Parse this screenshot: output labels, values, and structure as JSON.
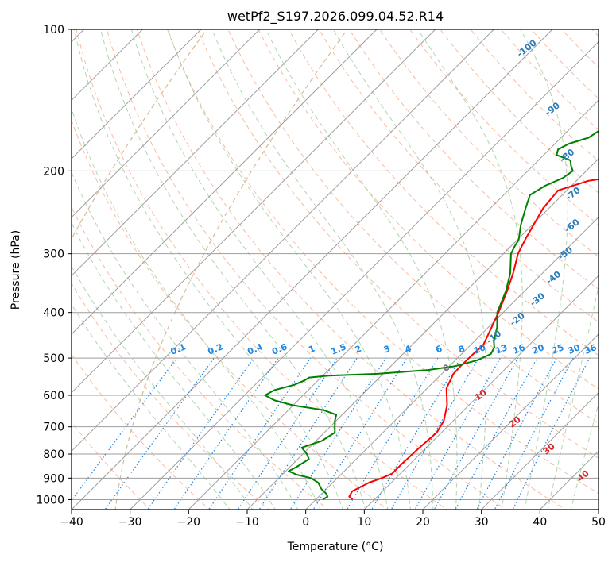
{
  "chart_data": {
    "type": "line",
    "title": "wetPf2_S197.2026.099.04.52.R14",
    "xlabel": "Temperature (°C)",
    "ylabel": "Pressure (hPa)",
    "xlim": [
      -40,
      50
    ],
    "ylim": [
      1050,
      100
    ],
    "y_scale": "log",
    "x_ticks": [
      "−40",
      "−30",
      "−20",
      "−10",
      "0",
      "10",
      "20",
      "30",
      "40",
      "50"
    ],
    "y_ticks": [
      "100",
      "200",
      "300",
      "400",
      "500",
      "600",
      "700",
      "800",
      "900",
      "1000"
    ],
    "y_tick_values": [
      100,
      200,
      300,
      400,
      500,
      600,
      700,
      800,
      900,
      1000
    ],
    "colors": {
      "temperature": "#ff0000",
      "dewpoint": "#008000",
      "isotherm": "#9e9e9e",
      "dry_adiabat": "#f4a582",
      "moist_adiabat": "#9ccc9c",
      "mixing_ratio": "#1e88e5",
      "lcl_isotherm": "#d2b48c",
      "label_dry": "#2c7bb6",
      "label_mixing": "#1e88e5",
      "label_red": "#d62728",
      "label_zero": "#777777"
    },
    "series": [
      {
        "name": "temperature",
        "points": [
          {
            "p": 1000,
            "t": 6.3
          },
          {
            "p": 985,
            "t": 5.2
          },
          {
            "p": 960,
            "t": 4.8
          },
          {
            "p": 940,
            "t": 5.5
          },
          {
            "p": 920,
            "t": 6.2
          },
          {
            "p": 900,
            "t": 7.6
          },
          {
            "p": 880,
            "t": 8.6
          },
          {
            "p": 840,
            "t": 8.6
          },
          {
            "p": 780,
            "t": 8.8
          },
          {
            "p": 720,
            "t": 9.2
          },
          {
            "p": 680,
            "t": 8.4
          },
          {
            "p": 630,
            "t": 6.3
          },
          {
            "p": 580,
            "t": 3.3
          },
          {
            "p": 540,
            "t": 2.0
          },
          {
            "p": 520,
            "t": 1.9
          },
          {
            "p": 490,
            "t": 2.0
          },
          {
            "p": 470,
            "t": 2.2
          },
          {
            "p": 440,
            "t": 1.0
          },
          {
            "p": 400,
            "t": -0.8
          },
          {
            "p": 360,
            "t": -3.0
          },
          {
            "p": 330,
            "t": -5.0
          },
          {
            "p": 300,
            "t": -7.5
          },
          {
            "p": 280,
            "t": -8.7
          },
          {
            "p": 260,
            "t": -9.8
          },
          {
            "p": 240,
            "t": -11.0
          },
          {
            "p": 220,
            "t": -11.5
          },
          {
            "p": 210,
            "t": -8.0
          },
          {
            "p": 200,
            "t": 1.2
          },
          {
            "p": 195,
            "t": 4.8
          },
          {
            "p": 190,
            "t": 6.2
          },
          {
            "p": 180,
            "t": 7.8
          },
          {
            "p": 170,
            "t": 8.6
          },
          {
            "p": 160,
            "t": 9.3
          },
          {
            "p": 150,
            "t": 11.0
          },
          {
            "p": 140,
            "t": 13.2
          },
          {
            "p": 130,
            "t": 15.6
          },
          {
            "p": 120,
            "t": 17.5
          },
          {
            "p": 110,
            "t": 21.0
          },
          {
            "p": 100,
            "t": 24.0
          }
        ]
      },
      {
        "name": "dewpoint",
        "points": [
          {
            "p": 1000,
            "t": 1.2
          },
          {
            "p": 985,
            "t": 1.5
          },
          {
            "p": 970,
            "t": 0.7
          },
          {
            "p": 950,
            "t": -0.8
          },
          {
            "p": 920,
            "t": -2.5
          },
          {
            "p": 900,
            "t": -4.5
          },
          {
            "p": 885,
            "t": -7.5
          },
          {
            "p": 870,
            "t": -9.5
          },
          {
            "p": 850,
            "t": -8.8
          },
          {
            "p": 820,
            "t": -8.1
          },
          {
            "p": 800,
            "t": -9.3
          },
          {
            "p": 775,
            "t": -11.3
          },
          {
            "p": 750,
            "t": -9.0
          },
          {
            "p": 720,
            "t": -8.2
          },
          {
            "p": 700,
            "t": -9.2
          },
          {
            "p": 680,
            "t": -10.2
          },
          {
            "p": 660,
            "t": -11.0
          },
          {
            "p": 645,
            "t": -14.0
          },
          {
            "p": 630,
            "t": -20.0
          },
          {
            "p": 615,
            "t": -24.0
          },
          {
            "p": 600,
            "t": -26.5
          },
          {
            "p": 585,
            "t": -25.8
          },
          {
            "p": 570,
            "t": -23.3
          },
          {
            "p": 558,
            "t": -22.3
          },
          {
            "p": 550,
            "t": -22.0
          },
          {
            "p": 545,
            "t": -19.0
          },
          {
            "p": 540,
            "t": -11.0
          },
          {
            "p": 530,
            "t": -3.0
          },
          {
            "p": 520,
            "t": 1.0
          },
          {
            "p": 505,
            "t": 3.8
          },
          {
            "p": 490,
            "t": 5.0
          },
          {
            "p": 475,
            "t": 4.5
          },
          {
            "p": 460,
            "t": 3.3
          },
          {
            "p": 430,
            "t": 1.5
          },
          {
            "p": 400,
            "t": -1.0
          },
          {
            "p": 360,
            "t": -3.2
          },
          {
            "p": 330,
            "t": -5.5
          },
          {
            "p": 300,
            "t": -8.7
          },
          {
            "p": 290,
            "t": -9.3
          },
          {
            "p": 280,
            "t": -9.8
          },
          {
            "p": 260,
            "t": -12.0
          },
          {
            "p": 240,
            "t": -14.0
          },
          {
            "p": 225,
            "t": -15.5
          },
          {
            "p": 215,
            "t": -14.5
          },
          {
            "p": 207,
            "t": -12.8
          },
          {
            "p": 200,
            "t": -12.3
          },
          {
            "p": 195,
            "t": -13.5
          },
          {
            "p": 190,
            "t": -14.5
          },
          {
            "p": 185,
            "t": -17.8
          },
          {
            "p": 180,
            "t": -18.5
          },
          {
            "p": 175,
            "t": -17.6
          },
          {
            "p": 170,
            "t": -15.3
          },
          {
            "p": 160,
            "t": -14.2
          },
          {
            "p": 150,
            "t": -14.4
          },
          {
            "p": 140,
            "t": -14.6
          },
          {
            "p": 130,
            "t": -13.5
          },
          {
            "p": 120,
            "t": -11.0
          },
          {
            "p": 110,
            "t": -7.5
          },
          {
            "p": 100,
            "t": -4.0
          }
        ]
      }
    ],
    "dry_adiabat_labels": [
      "-100",
      "-90",
      "-80",
      "-70",
      "-60",
      "-50",
      "-40",
      "-30",
      "-20",
      "-10"
    ],
    "mixing_ratio_labels": [
      "0.1",
      "0.2",
      "0.4",
      "0.6",
      "1",
      "1.5",
      "2",
      "3",
      "4",
      "6",
      "8",
      "10",
      "13",
      "16",
      "20",
      "25",
      "30",
      "36"
    ],
    "moist_adiabat_labels": [
      "0",
      "10",
      "20",
      "30",
      "40"
    ]
  }
}
